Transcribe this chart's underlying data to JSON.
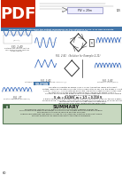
{
  "page_bg": "#ffffff",
  "pdf_bg": "#cc2200",
  "pdf_text_color": "#ffffff",
  "blue_wave": "#3366bb",
  "dark_text": "#222222",
  "mid_text": "#444444",
  "light_text": "#666666",
  "example_bg": "#4477aa",
  "solution_label_bg": "#4477aa",
  "summary_bg": "#c8d8c0",
  "summary_border": "#557755",
  "summary_icon_bg": "#446644",
  "box_bg": "#eeeeff",
  "box_border": "#8888bb",
  "circuit_color": "#333333",
  "green_bar": "#2255aa"
}
